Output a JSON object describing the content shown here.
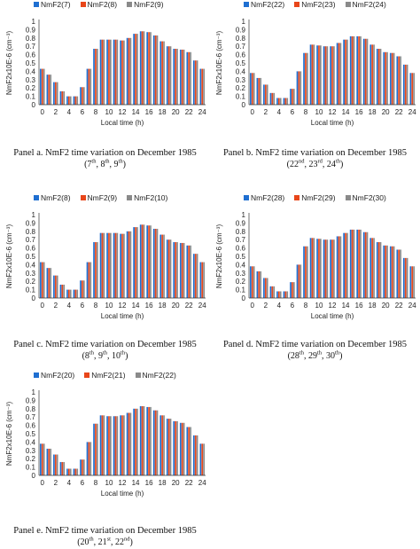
{
  "colors": {
    "series1": "#1f6fd1",
    "series2": "#e8461a",
    "series3": "#8a8a8a"
  },
  "chart_data": [
    {
      "type": "bar",
      "ylabel": "NmF2x10E-6 (cm⁻³)",
      "xlabel": "Local time (h)",
      "ylim": [
        0,
        1
      ],
      "yticks": [
        "0",
        "0.1",
        "0.2",
        "0.3",
        "0.4",
        "0.5",
        "0.6",
        "0.7",
        "0.8",
        "0.9",
        "1"
      ],
      "categories": [
        "0",
        "1",
        "2",
        "3",
        "4",
        "5",
        "6",
        "7",
        "8",
        "9",
        "10",
        "11",
        "12",
        "13",
        "14",
        "15",
        "16",
        "17",
        "18",
        "19",
        "20",
        "21",
        "22",
        "23",
        "24"
      ],
      "xticks": [
        "0",
        "2",
        "4",
        "6",
        "8",
        "10",
        "12",
        "14",
        "16",
        "18",
        "20",
        "22",
        "24"
      ],
      "legend_position": "top",
      "series": [
        {
          "name": "NmF2(7)",
          "values": [
            0.43,
            0.36,
            0.27,
            0.16,
            0.1,
            0.1,
            0.21,
            0.43,
            0.67,
            0.78,
            0.78,
            0.78,
            0.77,
            0.8,
            0.85,
            0.88,
            0.87,
            0.83,
            0.76,
            0.7,
            0.67,
            0.66,
            0.63,
            0.53,
            0.43
          ]
        },
        {
          "name": "NmF2(8)",
          "values": [
            0.43,
            0.36,
            0.27,
            0.16,
            0.1,
            0.1,
            0.21,
            0.43,
            0.67,
            0.78,
            0.78,
            0.78,
            0.77,
            0.8,
            0.85,
            0.88,
            0.87,
            0.83,
            0.76,
            0.7,
            0.67,
            0.66,
            0.63,
            0.53,
            0.43
          ]
        },
        {
          "name": "NmF2(9)",
          "values": [
            0.43,
            0.36,
            0.27,
            0.16,
            0.1,
            0.1,
            0.21,
            0.43,
            0.67,
            0.78,
            0.78,
            0.78,
            0.77,
            0.8,
            0.85,
            0.88,
            0.87,
            0.83,
            0.76,
            0.7,
            0.67,
            0.66,
            0.63,
            0.53,
            0.43
          ]
        }
      ],
      "caption": {
        "line1": "Panel a. NmF2 time variation on December 1985",
        "days": [
          [
            "7",
            "th"
          ],
          [
            "8",
            "th"
          ],
          [
            "9",
            "th"
          ]
        ]
      }
    },
    {
      "type": "bar",
      "ylabel": "NmF2x10E-6 (cm⁻³)",
      "xlabel": "Local time (h)",
      "ylim": [
        0,
        1
      ],
      "yticks": [
        "0",
        "0.1",
        "0.2",
        "0.3",
        "0.4",
        "0.5",
        "0.6",
        "0.7",
        "0.8",
        "0.9",
        "1"
      ],
      "categories": [
        "0",
        "1",
        "2",
        "3",
        "4",
        "5",
        "6",
        "7",
        "8",
        "9",
        "10",
        "11",
        "12",
        "13",
        "14",
        "15",
        "16",
        "17",
        "18",
        "19",
        "20",
        "21",
        "22",
        "23",
        "24"
      ],
      "xticks": [
        "0",
        "2",
        "4",
        "6",
        "8",
        "10",
        "12",
        "14",
        "16",
        "18",
        "20",
        "22",
        "24"
      ],
      "legend_position": "top",
      "series": [
        {
          "name": "NmF2(22)",
          "values": [
            0.38,
            0.32,
            0.24,
            0.14,
            0.08,
            0.08,
            0.19,
            0.4,
            0.62,
            0.72,
            0.71,
            0.7,
            0.7,
            0.74,
            0.78,
            0.82,
            0.82,
            0.79,
            0.72,
            0.67,
            0.63,
            0.62,
            0.58,
            0.48,
            0.38
          ]
        },
        {
          "name": "NmF2(23)",
          "values": [
            0.38,
            0.32,
            0.24,
            0.14,
            0.08,
            0.08,
            0.19,
            0.4,
            0.62,
            0.72,
            0.71,
            0.7,
            0.7,
            0.74,
            0.78,
            0.82,
            0.82,
            0.79,
            0.72,
            0.67,
            0.63,
            0.62,
            0.58,
            0.48,
            0.38
          ]
        },
        {
          "name": "NmF2(24)",
          "values": [
            0.38,
            0.32,
            0.24,
            0.14,
            0.08,
            0.08,
            0.19,
            0.4,
            0.62,
            0.72,
            0.71,
            0.7,
            0.7,
            0.74,
            0.78,
            0.82,
            0.82,
            0.79,
            0.72,
            0.67,
            0.63,
            0.62,
            0.58,
            0.48,
            0.38
          ]
        }
      ],
      "caption": {
        "line1": "Panel b. NmF2 time variation on December 1985",
        "days": [
          [
            "22",
            "nd"
          ],
          [
            "23",
            "rd"
          ],
          [
            "24",
            "th"
          ]
        ]
      }
    },
    {
      "type": "bar",
      "ylabel": "NmF2x10E-6 (cm⁻³)",
      "xlabel": "Local time (h)",
      "ylim": [
        0,
        1
      ],
      "yticks": [
        "0",
        "0.1",
        "0.2",
        "0.3",
        "0.4",
        "0.5",
        "0.6",
        "0.7",
        "0.8",
        "0.9",
        "1"
      ],
      "categories": [
        "0",
        "1",
        "2",
        "3",
        "4",
        "5",
        "6",
        "7",
        "8",
        "9",
        "10",
        "11",
        "12",
        "13",
        "14",
        "15",
        "16",
        "17",
        "18",
        "19",
        "20",
        "21",
        "22",
        "23",
        "24"
      ],
      "xticks": [
        "0",
        "2",
        "4",
        "6",
        "8",
        "10",
        "12",
        "14",
        "16",
        "18",
        "20",
        "22",
        "24"
      ],
      "legend_position": "top",
      "series": [
        {
          "name": "NmF2(8)",
          "values": [
            0.43,
            0.36,
            0.27,
            0.16,
            0.1,
            0.1,
            0.21,
            0.43,
            0.67,
            0.78,
            0.78,
            0.78,
            0.77,
            0.8,
            0.85,
            0.88,
            0.87,
            0.83,
            0.76,
            0.7,
            0.67,
            0.66,
            0.63,
            0.53,
            0.43
          ]
        },
        {
          "name": "NmF2(9)",
          "values": [
            0.43,
            0.36,
            0.27,
            0.16,
            0.1,
            0.1,
            0.21,
            0.43,
            0.67,
            0.78,
            0.78,
            0.78,
            0.77,
            0.8,
            0.85,
            0.88,
            0.87,
            0.83,
            0.76,
            0.7,
            0.67,
            0.66,
            0.63,
            0.53,
            0.43
          ]
        },
        {
          "name": "NmF2(10)",
          "values": [
            0.43,
            0.36,
            0.27,
            0.16,
            0.1,
            0.1,
            0.21,
            0.43,
            0.67,
            0.78,
            0.78,
            0.78,
            0.77,
            0.8,
            0.85,
            0.88,
            0.87,
            0.83,
            0.76,
            0.7,
            0.67,
            0.66,
            0.63,
            0.53,
            0.43
          ]
        }
      ],
      "caption": {
        "line1": "Panel c. NmF2 time variation on December 1985",
        "days": [
          [
            "8",
            "th"
          ],
          [
            "9",
            "th"
          ],
          [
            "10",
            "th"
          ]
        ]
      }
    },
    {
      "type": "bar",
      "ylabel": "NmF2x10E-6 (cm⁻³)",
      "xlabel": "Local time (h)",
      "ylim": [
        0,
        1
      ],
      "yticks": [
        "0",
        "0.1",
        "0.2",
        "0.3",
        "0.4",
        "0.5",
        "0.6",
        "0.7",
        "0.8",
        "0.9",
        "1"
      ],
      "categories": [
        "0",
        "1",
        "2",
        "3",
        "4",
        "5",
        "6",
        "7",
        "8",
        "9",
        "10",
        "11",
        "12",
        "13",
        "14",
        "15",
        "16",
        "17",
        "18",
        "19",
        "20",
        "21",
        "22",
        "23",
        "24"
      ],
      "xticks": [
        "0",
        "2",
        "4",
        "6",
        "8",
        "10",
        "12",
        "14",
        "16",
        "18",
        "20",
        "22",
        "24"
      ],
      "legend_position": "top",
      "series": [
        {
          "name": "NmF2(28)",
          "values": [
            0.38,
            0.32,
            0.24,
            0.14,
            0.08,
            0.08,
            0.19,
            0.4,
            0.62,
            0.72,
            0.71,
            0.7,
            0.7,
            0.74,
            0.78,
            0.82,
            0.82,
            0.79,
            0.72,
            0.67,
            0.63,
            0.62,
            0.58,
            0.48,
            0.38
          ]
        },
        {
          "name": "NmF2(29)",
          "values": [
            0.38,
            0.32,
            0.24,
            0.14,
            0.08,
            0.08,
            0.19,
            0.4,
            0.62,
            0.72,
            0.71,
            0.7,
            0.7,
            0.74,
            0.78,
            0.82,
            0.82,
            0.79,
            0.72,
            0.67,
            0.63,
            0.62,
            0.58,
            0.48,
            0.38
          ]
        },
        {
          "name": "NmF2(30)",
          "values": [
            0.38,
            0.32,
            0.24,
            0.14,
            0.08,
            0.08,
            0.19,
            0.4,
            0.62,
            0.72,
            0.71,
            0.7,
            0.7,
            0.74,
            0.78,
            0.82,
            0.82,
            0.79,
            0.72,
            0.67,
            0.63,
            0.62,
            0.58,
            0.48,
            0.38
          ]
        }
      ],
      "caption": {
        "line1": "Panel d. NmF2 time variation on December 1985",
        "days": [
          [
            "28",
            "th"
          ],
          [
            "29",
            "th"
          ],
          [
            "30",
            "th"
          ]
        ]
      }
    },
    {
      "type": "bar",
      "ylabel": "NmF2x10E-6 (cm⁻³)",
      "xlabel": "Local time (h)",
      "ylim": [
        0,
        1
      ],
      "yticks": [
        "0",
        "0.1",
        "0.2",
        "0.3",
        "0.4",
        "0.5",
        "0.6",
        "0.7",
        "0.8",
        "0.9",
        "1"
      ],
      "categories": [
        "0",
        "1",
        "2",
        "3",
        "4",
        "5",
        "6",
        "7",
        "8",
        "9",
        "10",
        "11",
        "12",
        "13",
        "14",
        "15",
        "16",
        "17",
        "18",
        "19",
        "20",
        "21",
        "22",
        "23",
        "24"
      ],
      "xticks": [
        "0",
        "2",
        "4",
        "6",
        "8",
        "10",
        "12",
        "14",
        "16",
        "18",
        "20",
        "22",
        "24"
      ],
      "legend_position": "top",
      "series": [
        {
          "name": "NmF2(20)",
          "values": [
            0.38,
            0.32,
            0.25,
            0.16,
            0.08,
            0.08,
            0.19,
            0.4,
            0.62,
            0.72,
            0.71,
            0.71,
            0.72,
            0.75,
            0.8,
            0.83,
            0.82,
            0.78,
            0.72,
            0.68,
            0.65,
            0.63,
            0.58,
            0.48,
            0.38
          ]
        },
        {
          "name": "NmF2(21)",
          "values": [
            0.38,
            0.32,
            0.25,
            0.16,
            0.08,
            0.08,
            0.19,
            0.4,
            0.62,
            0.72,
            0.71,
            0.71,
            0.72,
            0.75,
            0.8,
            0.83,
            0.82,
            0.78,
            0.72,
            0.68,
            0.65,
            0.63,
            0.58,
            0.48,
            0.38
          ]
        },
        {
          "name": "NmF2(22)",
          "values": [
            0.38,
            0.32,
            0.25,
            0.16,
            0.08,
            0.08,
            0.19,
            0.4,
            0.62,
            0.72,
            0.71,
            0.71,
            0.72,
            0.75,
            0.8,
            0.83,
            0.82,
            0.78,
            0.72,
            0.68,
            0.65,
            0.63,
            0.58,
            0.48,
            0.38
          ]
        }
      ],
      "caption": {
        "line1": "Panel e. NmF2 time variation on December 1985",
        "days": [
          [
            "20",
            "th"
          ],
          [
            "21",
            "st"
          ],
          [
            "22",
            "nd"
          ]
        ]
      }
    }
  ]
}
